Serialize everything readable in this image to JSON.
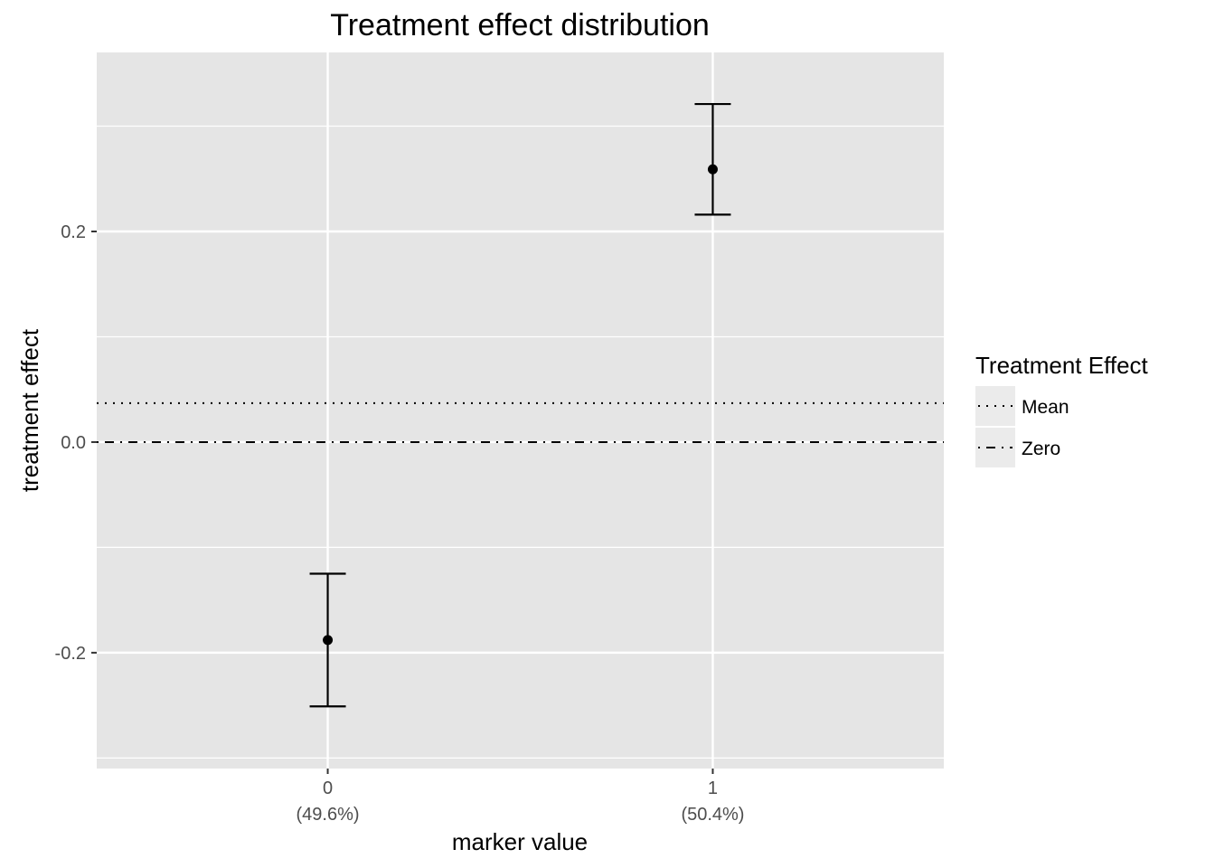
{
  "chart_data": {
    "type": "errorbar",
    "title": "Treatment effect distribution",
    "xlabel": "marker value",
    "ylabel": "treatment effect",
    "categories": [
      "0",
      "1"
    ],
    "category_sublabels": [
      "(49.6%)",
      "(50.4%)"
    ],
    "ylim": [
      -0.31,
      0.37
    ],
    "yticks": [
      -0.2,
      0.0,
      0.2
    ],
    "ytick_labels": [
      "-0.2",
      "0.0",
      "0.2"
    ],
    "points": [
      {
        "x": "0",
        "y": -0.188,
        "lower": -0.251,
        "upper": -0.125
      },
      {
        "x": "1",
        "y": 0.259,
        "lower": 0.216,
        "upper": 0.321
      }
    ],
    "hlines": [
      {
        "name": "Mean",
        "y": 0.037,
        "linetype": "dotted"
      },
      {
        "name": "Zero",
        "y": 0.0,
        "linetype": "dotdash"
      }
    ],
    "legend": {
      "title": "Treatment Effect",
      "entries": [
        "Mean",
        "Zero"
      ],
      "position": "right"
    },
    "grid": true,
    "colors": {
      "panel_background": "#e5e5e5",
      "grid": "#ffffff",
      "ink": "#000000",
      "tick_text": "#4d4d4d",
      "legend_key_background": "#ebebeb"
    }
  }
}
